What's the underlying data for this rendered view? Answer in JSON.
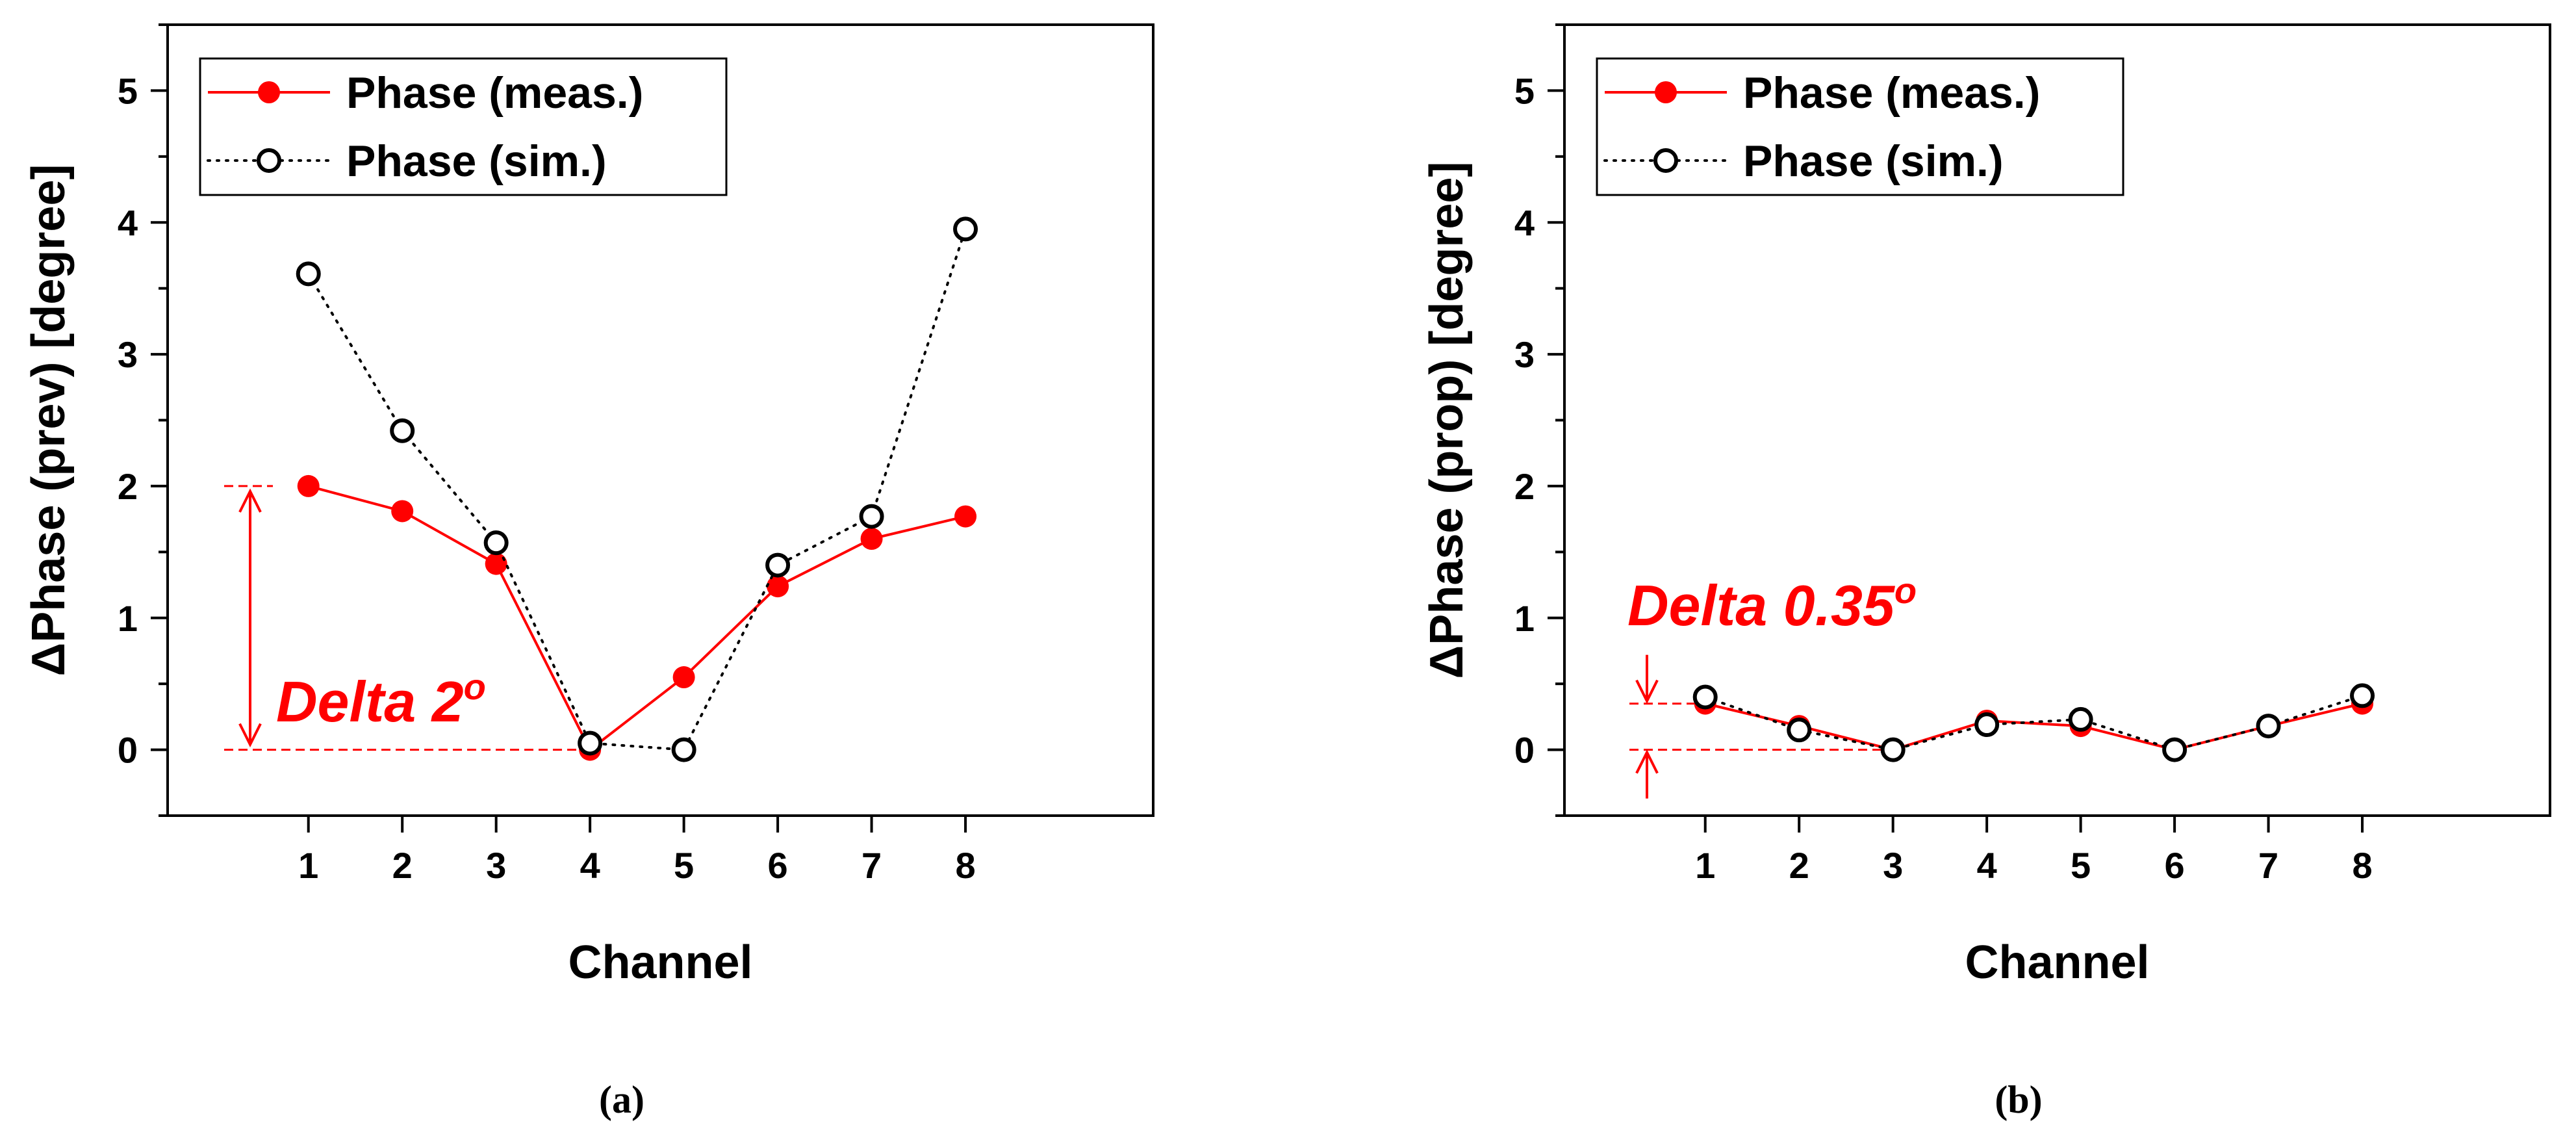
{
  "chart_data": [
    {
      "type": "line",
      "panel_label": "(a)",
      "xlabel": "Channel",
      "ylabel": "ΔPhase (prev) [degree]",
      "xlim": [
        -0.5,
        10.0
      ],
      "ylim": [
        -0.5,
        5.5
      ],
      "x_ticks": [
        1,
        2,
        3,
        4,
        5,
        6,
        7,
        8
      ],
      "y_ticks": [
        0,
        1,
        2,
        3,
        4,
        5
      ],
      "categories": [
        "1",
        "2",
        "3",
        "4",
        "5",
        "6",
        "7",
        "8"
      ],
      "series": [
        {
          "name": "Phase (meas.)",
          "style": "solid-filled",
          "color": "#ff0000",
          "values": [
            2.0,
            1.81,
            1.41,
            0.0,
            0.55,
            1.24,
            1.6,
            1.77
          ]
        },
        {
          "name": "Phase (sim.)",
          "style": "dotted-hollow",
          "color": "#000000",
          "values": [
            3.61,
            2.42,
            1.57,
            0.05,
            0.0,
            1.4,
            1.77,
            3.95
          ]
        }
      ],
      "legend_position": "top-left",
      "annotation": {
        "prefix": "Delta ",
        "value": "2",
        "superscript": "o",
        "color": "#ff0000",
        "range": [
          0.0,
          2.0
        ]
      }
    },
    {
      "type": "line",
      "panel_label": "(b)",
      "xlabel": "Channel",
      "ylabel": "ΔPhase (prop) [degree]",
      "xlim": [
        -0.5,
        10.0
      ],
      "ylim": [
        -0.5,
        5.5
      ],
      "x_ticks": [
        1,
        2,
        3,
        4,
        5,
        6,
        7,
        8
      ],
      "y_ticks": [
        0,
        1,
        2,
        3,
        4,
        5
      ],
      "categories": [
        "1",
        "2",
        "3",
        "4",
        "5",
        "6",
        "7",
        "8"
      ],
      "series": [
        {
          "name": "Phase (meas.)",
          "style": "solid-filled",
          "color": "#ff0000",
          "values": [
            0.35,
            0.18,
            0.0,
            0.22,
            0.18,
            0.0,
            0.18,
            0.35
          ]
        },
        {
          "name": "Phase (sim.)",
          "style": "dotted-hollow",
          "color": "#000000",
          "values": [
            0.4,
            0.15,
            0.0,
            0.19,
            0.23,
            0.0,
            0.18,
            0.41
          ]
        }
      ],
      "legend_position": "top-left",
      "annotation": {
        "prefix": "Delta ",
        "value": "0.35",
        "superscript": "o",
        "color": "#ff0000",
        "range": [
          0.0,
          0.35
        ]
      }
    }
  ]
}
